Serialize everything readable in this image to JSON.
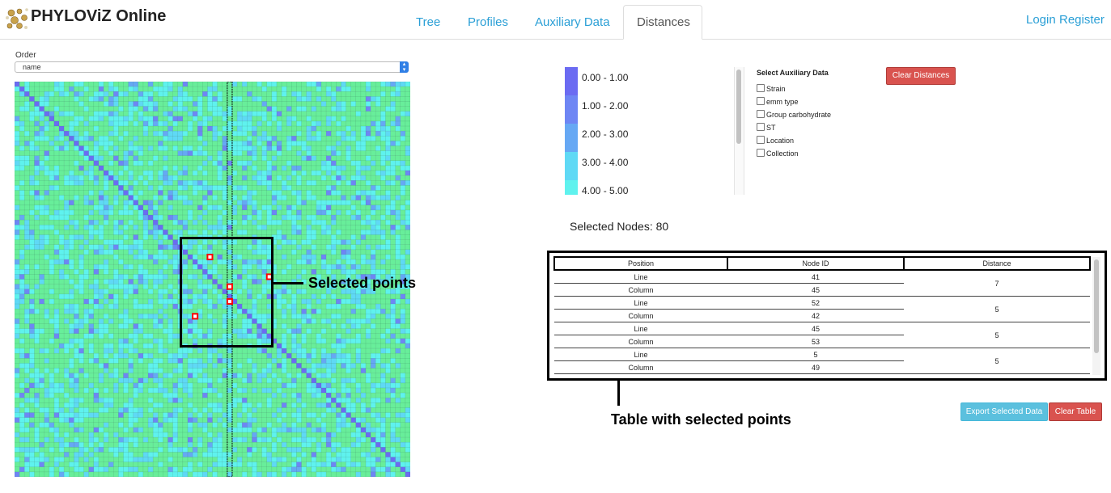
{
  "app": {
    "title": "PHYLOViZ Online"
  },
  "nav": {
    "tabs": [
      {
        "label": "Tree",
        "active": false
      },
      {
        "label": "Profiles",
        "active": false
      },
      {
        "label": "Auxiliary Data",
        "active": false
      },
      {
        "label": "Distances",
        "active": true
      }
    ],
    "login": "Login",
    "register": "Register"
  },
  "order": {
    "label": "Order",
    "value": "name"
  },
  "heatmap": {
    "colors": [
      "#6b6bf2",
      "#6e86f4",
      "#66a8f4",
      "#5fd9f5",
      "#5ff2ee",
      "#68ee9a"
    ],
    "selected_color": "#ff0000",
    "annotation": "Selected points"
  },
  "legend": {
    "colors": [
      "#6b6bf2",
      "#6e86f4",
      "#66a8f4",
      "#5fd9f5",
      "#5ff2ee"
    ],
    "items": [
      "0.00 - 1.00",
      "1.00 - 2.00",
      "2.00 - 3.00",
      "3.00 - 4.00",
      "4.00 - 5.00"
    ]
  },
  "auxiliary": {
    "title": "Select Auxiliary Data",
    "options": [
      "Strain",
      "emm type",
      "Group carbohydrate",
      "ST",
      "Location",
      "Collection"
    ]
  },
  "buttons": {
    "clear_distances": "Clear Distances",
    "export": "Export Selected Data",
    "clear_table": "Clear Table"
  },
  "selected_nodes": "Selected Nodes: 80",
  "table": {
    "headers": [
      "Position",
      "Node ID",
      "Distance"
    ],
    "pairs": [
      {
        "line_id": "41",
        "column_id": "45",
        "distance": "7"
      },
      {
        "line_id": "52",
        "column_id": "42",
        "distance": "5"
      },
      {
        "line_id": "45",
        "column_id": "53",
        "distance": "5"
      },
      {
        "line_id": "5",
        "column_id": "49",
        "distance": "5"
      }
    ],
    "line_label": "Line",
    "column_label": "Column",
    "annotation": "Table with selected points"
  }
}
